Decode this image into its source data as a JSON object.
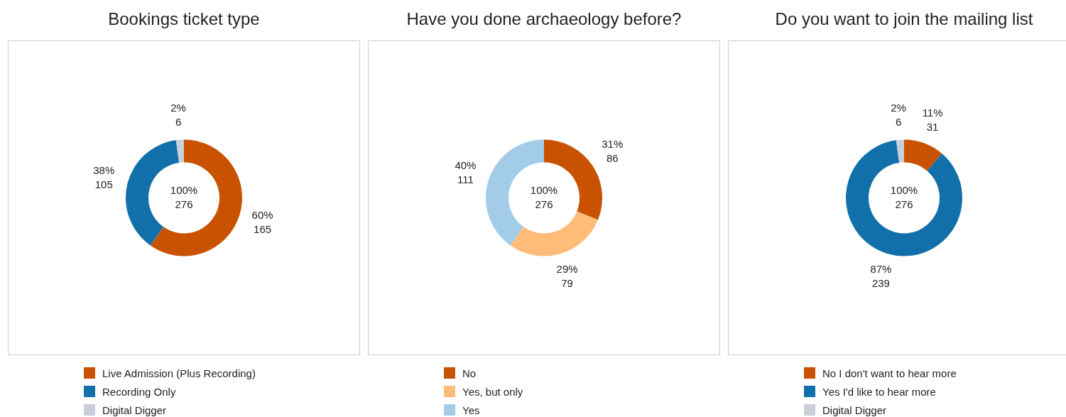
{
  "chart_data": [
    {
      "type": "donut",
      "title": "Bookings ticket type",
      "categories": [
        "Live Admission (Plus Recording)",
        "Recording Only",
        "Digital Digger"
      ],
      "values": [
        165,
        105,
        6
      ],
      "colors": [
        "#c85200",
        "#1170aa",
        "#c8d0d9"
      ],
      "value_labels": [
        "60%\n165",
        "38%\n105",
        "2%\n6"
      ],
      "annotations": [
        "100%\n276"
      ],
      "legend": "bottom left"
    },
    {
      "type": "donut",
      "title": "Have you done archaeology before?",
      "categories": [
        "No",
        "Yes, but only",
        "Yes"
      ],
      "values": [
        86,
        79,
        111
      ],
      "colors": [
        "#c85200",
        "#ffbc79",
        "#a3cce9"
      ],
      "value_labels": [
        "31%\n86",
        "29%\n79",
        "40%\n111"
      ],
      "annotations": [
        "100%\n276"
      ],
      "legend": "bottom left"
    },
    {
      "type": "donut",
      "title": "Do you want to join the mailing list",
      "categories": [
        "No I don't want to hear more",
        "Yes I'd like to hear more",
        "Digital Digger"
      ],
      "values": [
        31,
        239,
        6
      ],
      "colors": [
        "#c85200",
        "#1170aa",
        "#c8d0d9"
      ],
      "value_labels": [
        "11%\n31",
        "87%\n239",
        "2%\n6"
      ],
      "annotations": [
        "100%\n276"
      ],
      "legend": "bottom left"
    }
  ]
}
